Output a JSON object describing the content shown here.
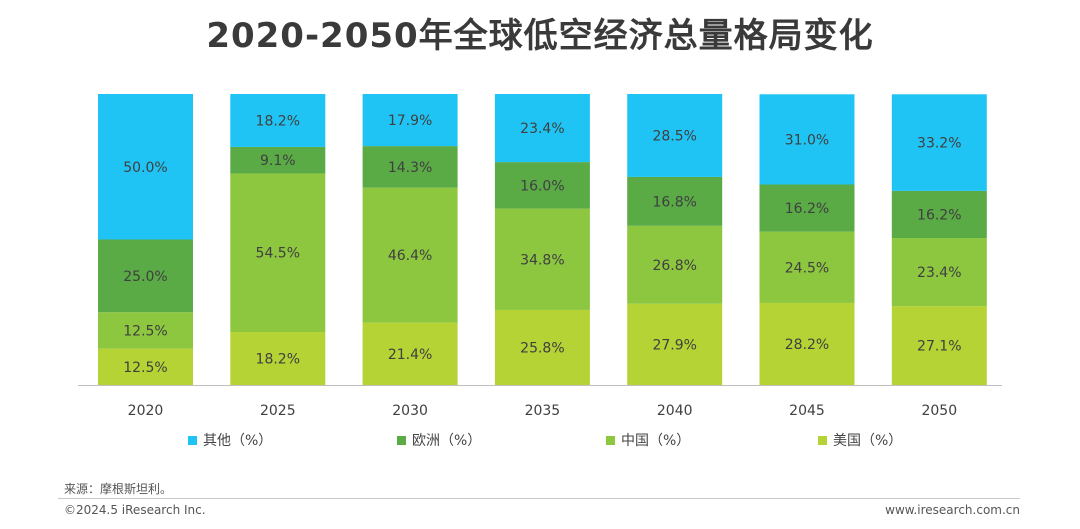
{
  "title": "2020-2050年全球低空经济总量格局变化",
  "chart_data": {
    "type": "bar",
    "stacked": true,
    "percent": true,
    "categories": [
      "2020",
      "2025",
      "2030",
      "2035",
      "2040",
      "2045",
      "2050"
    ],
    "series": [
      {
        "name": "美国（%）",
        "color": "#b5d334",
        "values": [
          12.5,
          18.2,
          21.4,
          25.8,
          27.9,
          28.2,
          27.1
        ]
      },
      {
        "name": "中国（%）",
        "color": "#8dc63f",
        "values": [
          12.5,
          54.5,
          46.4,
          34.8,
          26.8,
          24.5,
          23.4
        ]
      },
      {
        "name": "欧洲（%）",
        "color": "#5aaa46",
        "values": [
          25.0,
          9.1,
          14.3,
          16.0,
          16.8,
          16.2,
          16.2
        ]
      },
      {
        "name": "其他（%）",
        "color": "#20c4f4",
        "values": [
          50.0,
          18.2,
          17.9,
          23.4,
          28.5,
          31.0,
          33.2
        ]
      }
    ],
    "data_labels": [
      [
        "12.5%",
        "18.2%",
        "21.4%",
        "25.8%",
        "27.9%",
        "28.2%",
        "27.1%"
      ],
      [
        "12.5%",
        "54.5%",
        "46.4%",
        "34.8%",
        "26.8%",
        "24.5%",
        "23.4%"
      ],
      [
        "25.0%",
        "9.1%",
        "14.3%",
        "16.0%",
        "16.8%",
        "16.2%",
        "16.2%"
      ],
      [
        "50.0%",
        "18.2%",
        "17.9%",
        "23.4%",
        "28.5%",
        "31.0%",
        "33.2%"
      ]
    ],
    "legend_order": [
      "其他（%）",
      "欧洲（%）",
      "中国（%）",
      "美国（%）"
    ],
    "legend_position": "bottom",
    "ylim": [
      0,
      100
    ]
  },
  "source": "来源：摩根斯坦利。",
  "copyright": "©2024.5 iResearch Inc.",
  "website": "www.iresearch.com.cn"
}
